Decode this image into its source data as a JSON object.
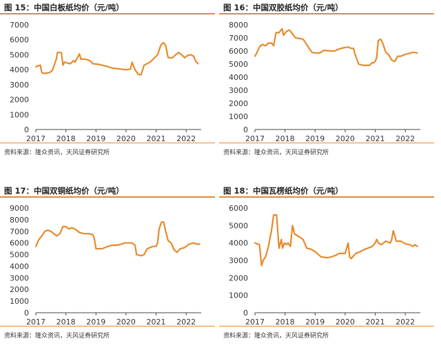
{
  "panels": [
    {
      "title": "图 15：中国白板纸均价（元/吨）",
      "source": "资料来源：隆众资讯，天风证券研究所"
    },
    {
      "title": "图 16：中国双胶纸均价（元/吨）",
      "source": "资料来源：隆众资讯，天风证券研究所"
    },
    {
      "title": "图 17：中国双铜纸均价（元/吨）",
      "source": "资料来源：隆众资讯，天风证券研究所"
    },
    {
      "title": "图 18：中国瓦楞纸均价（元/吨）",
      "source": "资料来源：隆众资讯，天风证券研究所"
    }
  ],
  "chart_data": [
    {
      "type": "line",
      "title": "图 15：中国白板纸均价（元/吨）",
      "color": "#e8892a",
      "xlim": [
        2017,
        2022.5
      ],
      "ylim": [
        0,
        7000
      ],
      "yticks": [
        0,
        1000,
        2000,
        3000,
        4000,
        5000,
        6000,
        7000
      ],
      "xticks": [
        2017,
        2018,
        2019,
        2020,
        2021,
        2022
      ],
      "x": [
        2017.0,
        2017.15,
        2017.2,
        2017.25,
        2017.45,
        2017.55,
        2017.68,
        2017.72,
        2017.85,
        2017.9,
        2017.95,
        2018.15,
        2018.25,
        2018.3,
        2018.45,
        2018.5,
        2018.65,
        2018.8,
        2018.9,
        2019.1,
        2019.2,
        2019.4,
        2019.55,
        2019.8,
        2019.95,
        2020.05,
        2020.15,
        2020.2,
        2020.3,
        2020.4,
        2020.5,
        2020.6,
        2020.8,
        2020.9,
        2021.0,
        2021.05,
        2021.1,
        2021.15,
        2021.2,
        2021.25,
        2021.32,
        2021.4,
        2021.55,
        2021.65,
        2021.75,
        2021.85,
        2021.95,
        2022.05,
        2022.15,
        2022.25,
        2022.32,
        2022.4
      ],
      "y": [
        4200,
        4300,
        3800,
        3750,
        3800,
        3950,
        4700,
        5150,
        5150,
        4300,
        4500,
        4400,
        4600,
        4500,
        5050,
        4700,
        4700,
        4600,
        4400,
        4350,
        4300,
        4200,
        4100,
        4050,
        4000,
        4000,
        4050,
        4500,
        4000,
        3700,
        3650,
        4300,
        4500,
        4700,
        4900,
        5000,
        5300,
        5600,
        5750,
        5800,
        5600,
        4800,
        4800,
        5000,
        5150,
        5000,
        4800,
        4950,
        5000,
        4900,
        4550,
        4400
      ]
    },
    {
      "type": "line",
      "title": "图 16：中国双胶纸均价（元/吨）",
      "color": "#e8892a",
      "xlim": [
        2017,
        2022.5
      ],
      "ylim": [
        0,
        8000
      ],
      "yticks": [
        0,
        1000,
        2000,
        3000,
        4000,
        5000,
        6000,
        7000,
        8000
      ],
      "xticks": [
        2017,
        2018,
        2019,
        2020,
        2021,
        2022
      ],
      "x": [
        2017.0,
        2017.05,
        2017.15,
        2017.25,
        2017.35,
        2017.45,
        2017.55,
        2017.62,
        2017.7,
        2017.8,
        2017.9,
        2017.95,
        2018.05,
        2018.15,
        2018.25,
        2018.35,
        2018.5,
        2018.6,
        2018.75,
        2018.8,
        2018.9,
        2019.0,
        2019.15,
        2019.3,
        2019.5,
        2019.65,
        2019.8,
        2019.95,
        2020.1,
        2020.2,
        2020.28,
        2020.32,
        2020.45,
        2020.6,
        2020.8,
        2020.9,
        2020.95,
        2021.0,
        2021.05,
        2021.1,
        2021.18,
        2021.25,
        2021.35,
        2021.45,
        2021.55,
        2021.65,
        2021.75,
        2021.85,
        2021.95,
        2022.1,
        2022.25,
        2022.4
      ],
      "y": [
        5600,
        5800,
        6300,
        6500,
        6400,
        6600,
        6600,
        6400,
        7400,
        7400,
        7700,
        7200,
        7500,
        7600,
        7300,
        7000,
        6950,
        6900,
        6400,
        6200,
        5900,
        5850,
        5850,
        6050,
        6000,
        6000,
        6150,
        6250,
        6300,
        6200,
        6200,
        5800,
        5000,
        4900,
        4900,
        5100,
        5100,
        5200,
        5500,
        6800,
        6900,
        6600,
        5900,
        5700,
        5300,
        5200,
        5600,
        5600,
        5700,
        5800,
        5900,
        5850
      ]
    },
    {
      "type": "line",
      "title": "图 17：中国双铜纸均价（元/吨）",
      "color": "#e8892a",
      "xlim": [
        2017,
        2022.5
      ],
      "ylim": [
        0,
        9000
      ],
      "yticks": [
        0,
        1000,
        2000,
        3000,
        4000,
        5000,
        6000,
        7000,
        8000,
        9000
      ],
      "xticks": [
        2017,
        2018,
        2019,
        2020,
        2021,
        2022
      ],
      "x": [
        2017.0,
        2017.1,
        2017.2,
        2017.3,
        2017.4,
        2017.5,
        2017.6,
        2017.7,
        2017.8,
        2017.9,
        2018.0,
        2018.1,
        2018.2,
        2018.3,
        2018.45,
        2018.6,
        2018.75,
        2018.9,
        2018.95,
        2019.0,
        2019.2,
        2019.4,
        2019.55,
        2019.7,
        2019.85,
        2019.95,
        2020.1,
        2020.2,
        2020.3,
        2020.35,
        2020.5,
        2020.6,
        2020.7,
        2020.8,
        2020.9,
        2021.0,
        2021.05,
        2021.1,
        2021.18,
        2021.25,
        2021.3,
        2021.4,
        2021.5,
        2021.6,
        2021.7,
        2021.8,
        2021.95,
        2022.1,
        2022.25,
        2022.35,
        2022.45
      ],
      "y": [
        5700,
        6300,
        6600,
        7000,
        7100,
        7000,
        6800,
        6600,
        6800,
        7400,
        7400,
        7200,
        7300,
        7200,
        6900,
        6800,
        6800,
        6700,
        6300,
        5500,
        5500,
        5700,
        5800,
        5800,
        5900,
        6000,
        6000,
        6000,
        5800,
        5000,
        4900,
        5000,
        5500,
        5600,
        5700,
        5700,
        6000,
        7200,
        7800,
        7800,
        7200,
        6200,
        6000,
        5400,
        5200,
        5500,
        5600,
        5900,
        6000,
        5900,
        5900
      ]
    },
    {
      "type": "line",
      "title": "图 18：中国瓦楞纸均价（元/吨）",
      "color": "#e8892a",
      "xlim": [
        2017,
        2022.5
      ],
      "ylim": [
        0,
        6000
      ],
      "yticks": [
        0,
        1000,
        2000,
        3000,
        4000,
        5000,
        6000
      ],
      "xticks": [
        2017,
        2018,
        2019,
        2020,
        2021,
        2022
      ],
      "x": [
        2017.0,
        2017.15,
        2017.22,
        2017.27,
        2017.35,
        2017.45,
        2017.55,
        2017.62,
        2017.72,
        2017.8,
        2017.88,
        2017.92,
        2017.98,
        2018.05,
        2018.1,
        2018.18,
        2018.25,
        2018.32,
        2018.42,
        2018.52,
        2018.6,
        2018.72,
        2018.85,
        2019.0,
        2019.2,
        2019.4,
        2019.55,
        2019.7,
        2019.8,
        2019.9,
        2020.0,
        2020.1,
        2020.15,
        2020.2,
        2020.25,
        2020.35,
        2020.5,
        2020.6,
        2020.75,
        2020.9,
        2021.0,
        2021.05,
        2021.1,
        2021.2,
        2021.35,
        2021.5,
        2021.55,
        2021.6,
        2021.7,
        2021.85,
        2022.0,
        2022.15,
        2022.25,
        2022.32,
        2022.4
      ],
      "y": [
        4000,
        3900,
        2700,
        3000,
        3200,
        3800,
        4700,
        5600,
        5600,
        3700,
        4200,
        3700,
        4000,
        3900,
        4000,
        3800,
        5000,
        4500,
        4400,
        4300,
        4200,
        3700,
        3650,
        3500,
        3200,
        3150,
        3200,
        3300,
        3400,
        3400,
        3400,
        4000,
        3200,
        3100,
        3200,
        3400,
        3500,
        3600,
        3700,
        3800,
        4000,
        4200,
        4000,
        3900,
        4100,
        4000,
        4200,
        4700,
        4100,
        4100,
        3950,
        3900,
        3800,
        3900,
        3800
      ]
    }
  ]
}
